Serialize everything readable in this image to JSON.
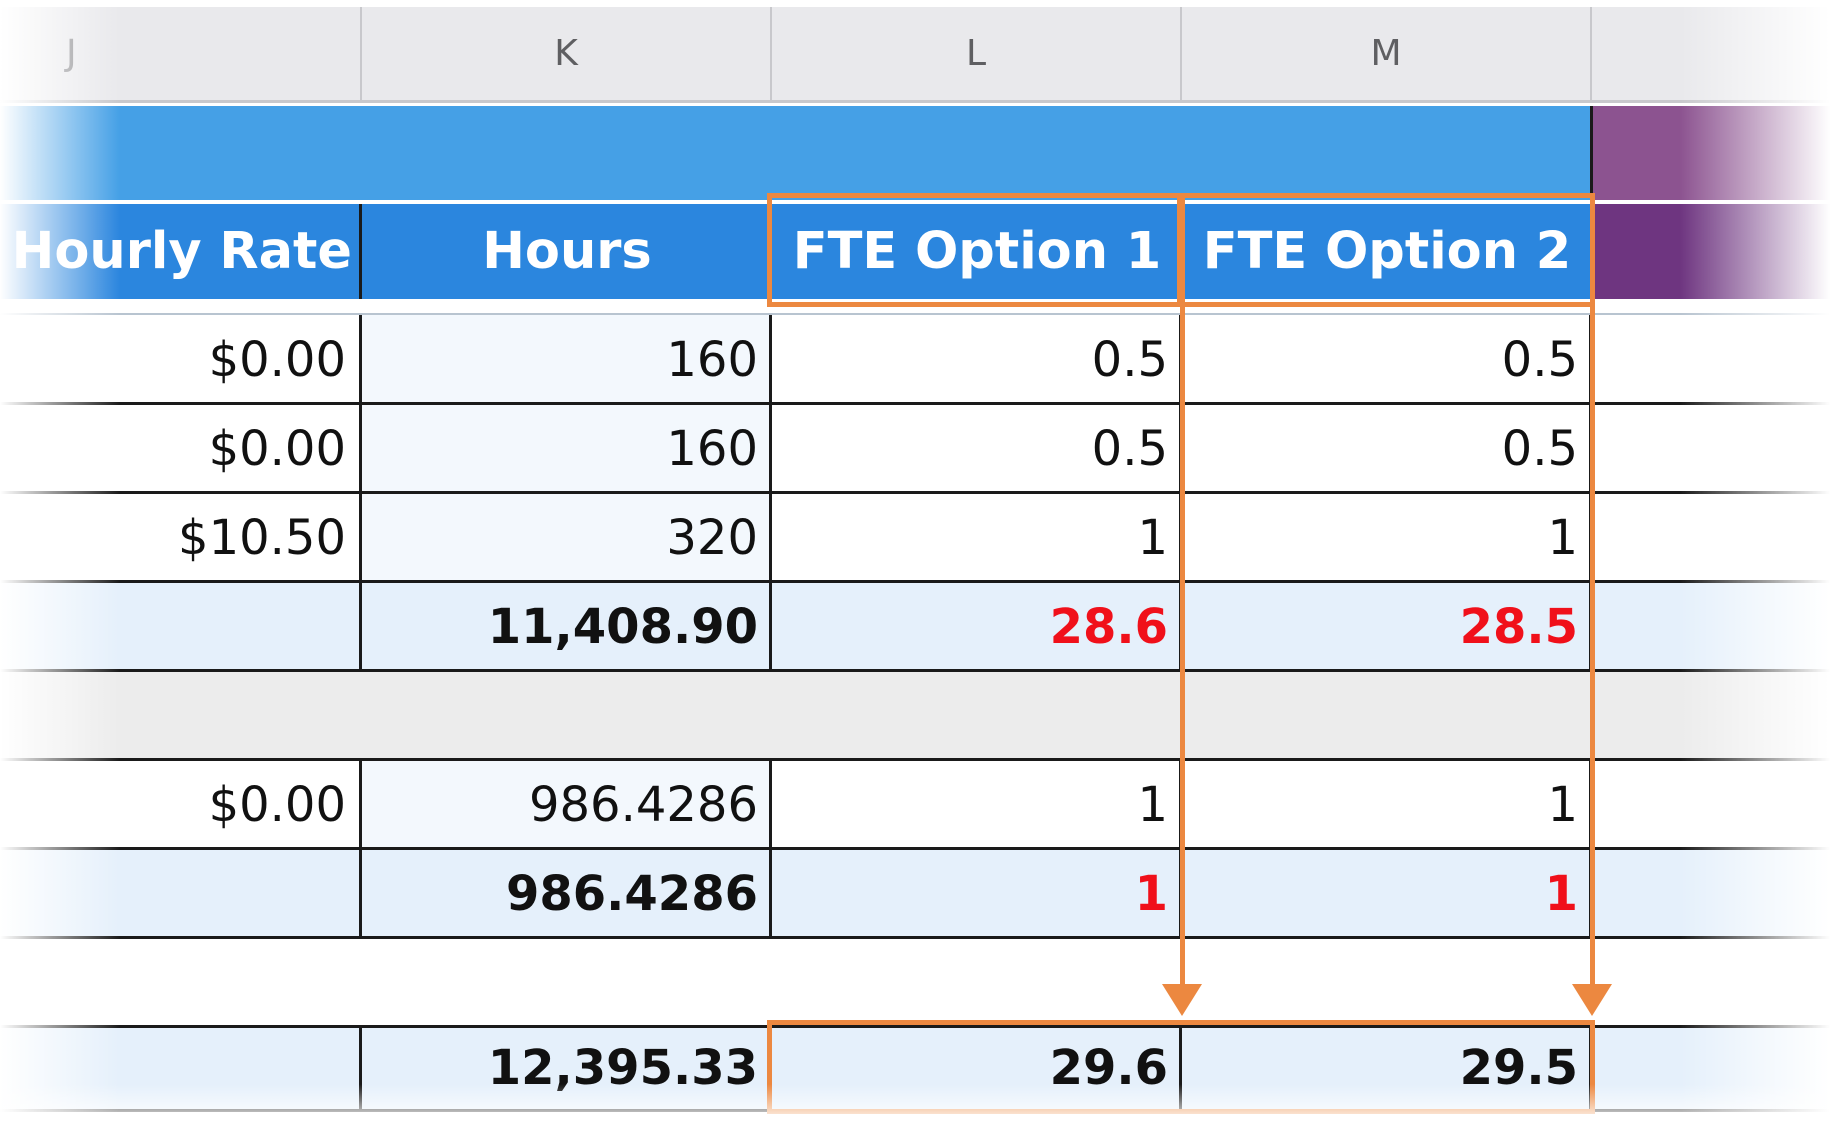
{
  "columns": [
    "J",
    "K",
    "L",
    "M"
  ],
  "headers": {
    "hourly_rate": "Hourly Rate",
    "hours": "Hours",
    "fte1": "FTE Option 1",
    "fte2": "FTE Option 2"
  },
  "rows": [
    {
      "rate": "$0.00",
      "hours": "160",
      "fte1": "0.5",
      "fte2": "0.5"
    },
    {
      "rate": "$0.00",
      "hours": "160",
      "fte1": "0.5",
      "fte2": "0.5"
    },
    {
      "rate": "$10.50",
      "hours": "320",
      "fte1": "1",
      "fte2": "1"
    },
    {
      "rate": "",
      "hours": "11,408.90",
      "fte1": "28.6",
      "fte2": "28.5"
    },
    {
      "rate": "",
      "hours": "",
      "fte1": "",
      "fte2": ""
    },
    {
      "rate": "$0.00",
      "hours": "986.4286",
      "fte1": "1",
      "fte2": "1"
    },
    {
      "rate": "",
      "hours": "986.4286",
      "fte1": "1",
      "fte2": "1"
    },
    {
      "rate": "",
      "hours": "",
      "fte1": "",
      "fte2": ""
    },
    {
      "rate": "",
      "hours": "12,395.33",
      "fte1": "29.6",
      "fte2": "29.5"
    }
  ],
  "colors": {
    "header_blue": "#2b86de",
    "band_blue": "#45a0e6",
    "purple": "#6e3580",
    "highlight_orange": "#ec8840",
    "subtotal_red": "#f0101a"
  }
}
